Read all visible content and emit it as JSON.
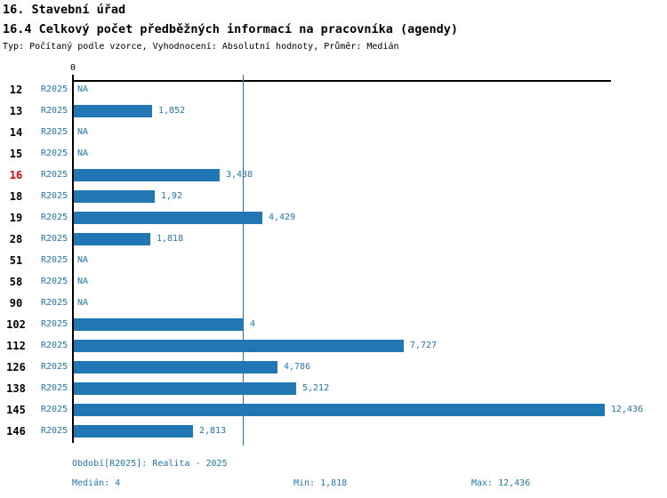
{
  "header": {
    "section_title": "16. Stavební úřad",
    "indicator_title": "16.4 Celkový počet předběžných informací na pracovníka (agendy)",
    "meta": "Typ: Počítaný podle vzorce, Vyhodnocení: Absolutní hodnoty, Průměr: Medián"
  },
  "chart_data": {
    "type": "bar",
    "orientation": "horizontal",
    "series_name": "R2025",
    "categories": [
      "12",
      "13",
      "14",
      "15",
      "16",
      "18",
      "19",
      "28",
      "51",
      "58",
      "90",
      "102",
      "112",
      "126",
      "138",
      "145",
      "146"
    ],
    "values": [
      null,
      1.852,
      null,
      null,
      3.438,
      1.92,
      4.429,
      1.818,
      null,
      null,
      null,
      4,
      7.727,
      4.786,
      5.212,
      12.436,
      2.813
    ],
    "value_labels": [
      "NA",
      "1,852",
      "NA",
      "NA",
      "3,438",
      "1,92",
      "4,429",
      "1,818",
      "NA",
      "NA",
      "NA",
      "4",
      "7,727",
      "4,786",
      "5,212",
      "12,436",
      "2,813"
    ],
    "highlighted_category": "16",
    "axis": {
      "zero_label": "0",
      "x_min": 0,
      "x_max": 12.436,
      "grid": false
    },
    "median_value": 4,
    "colors": {
      "bar": "#2077b4",
      "median_line": "#2077b4",
      "value_text": "#2077b4",
      "highlight_label": "#dd0000",
      "axis": "#000000"
    }
  },
  "footer": {
    "period": "Období[R2025]: Realita - 2025",
    "median": "Medián: 4",
    "min": "Min: 1,818",
    "max": "Max: 12,436"
  }
}
